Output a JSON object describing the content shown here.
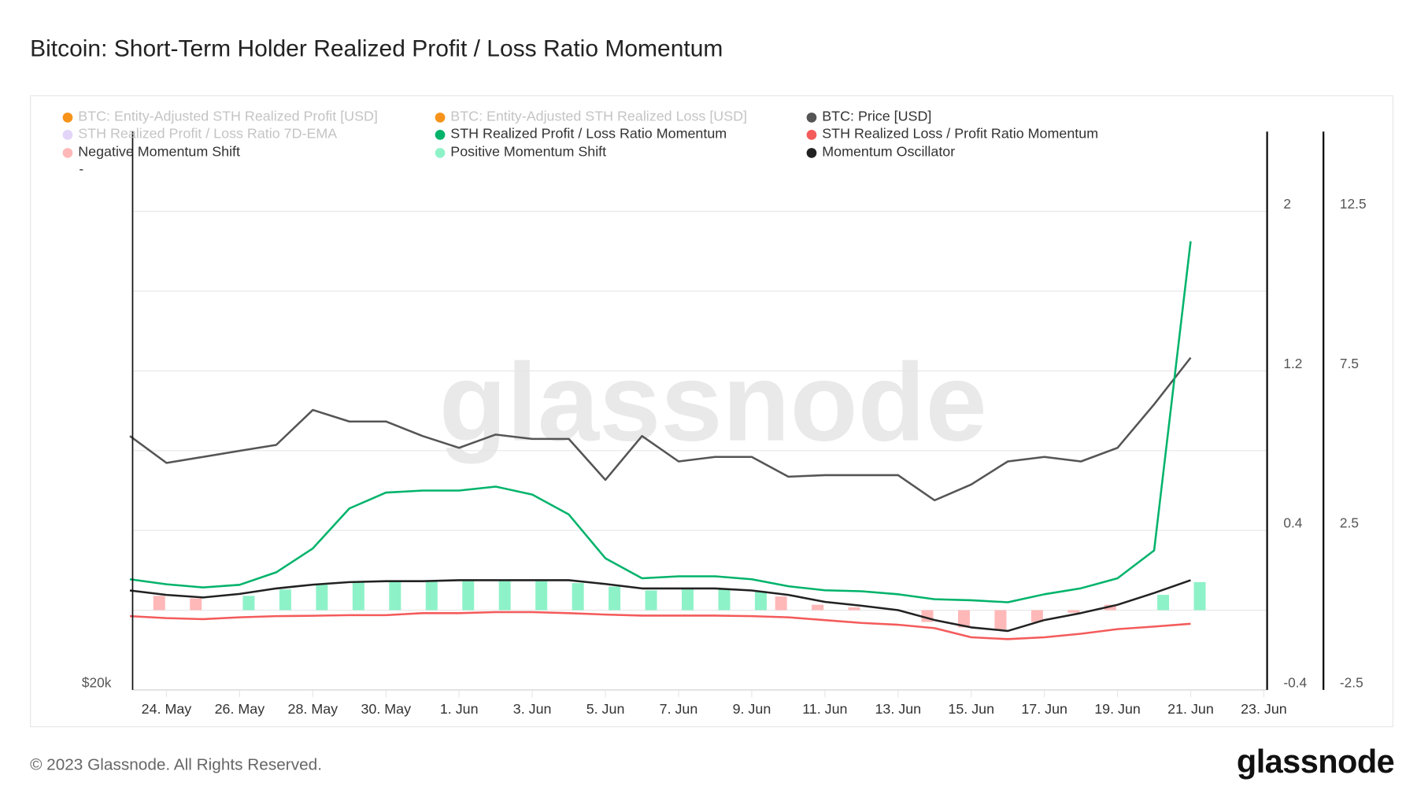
{
  "title": "Bitcoin: Short-Term Holder Realized Profit / Loss Ratio Momentum",
  "footer": {
    "copyright": "© 2023 Glassnode. All Rights Reserved.",
    "logo": "glassnode"
  },
  "watermark": "glassnode",
  "legend": {
    "items": [
      {
        "label": "BTC: Entity-Adjusted STH Realized Profit [USD]",
        "color": "#f7931a",
        "enabled": false
      },
      {
        "label": "BTC: Entity-Adjusted STH Realized Loss [USD]",
        "color": "#f7931a",
        "enabled": false
      },
      {
        "label": "BTC: Price [USD]",
        "color": "#555555",
        "enabled": true
      },
      {
        "label": "STH Realized Profit / Loss Ratio 7D-EMA",
        "color": "#e2d5f8",
        "enabled": false
      },
      {
        "label": "STH Realized Profit / Loss Ratio Momentum",
        "color": "#00b36b",
        "enabled": true
      },
      {
        "label": "STH Realized Loss / Profit Ratio Momentum",
        "color": "#f45b5b",
        "enabled": true
      },
      {
        "label": "Negative Momentum Shift",
        "color": "#ffb8b8",
        "enabled": true
      },
      {
        "label": "Positive Momentum Shift",
        "color": "#8ef2c8",
        "enabled": true
      },
      {
        "label": "Momentum Oscillator",
        "color": "#222222",
        "enabled": true
      }
    ],
    "extra": "-"
  },
  "chart_data": {
    "type": "line",
    "title": "Bitcoin: Short-Term Holder Realized Profit / Loss Ratio Momentum",
    "grid": true,
    "legend_position": "top",
    "x": [
      "2023-05-23",
      "2023-05-24",
      "2023-05-25",
      "2023-05-26",
      "2023-05-27",
      "2023-05-28",
      "2023-05-29",
      "2023-05-30",
      "2023-05-31",
      "2023-06-01",
      "2023-06-02",
      "2023-06-03",
      "2023-06-04",
      "2023-06-05",
      "2023-06-06",
      "2023-06-07",
      "2023-06-08",
      "2023-06-09",
      "2023-06-10",
      "2023-06-11",
      "2023-06-12",
      "2023-06-13",
      "2023-06-14",
      "2023-06-15",
      "2023-06-16",
      "2023-06-17",
      "2023-06-18",
      "2023-06-19",
      "2023-06-20",
      "2023-06-21"
    ],
    "x_ticks": [
      "24. May",
      "26. May",
      "28. May",
      "30. May",
      "1. Jun",
      "3. Jun",
      "5. Jun",
      "7. Jun",
      "9. Jun",
      "11. Jun",
      "13. Jun",
      "15. Jun",
      "17. Jun",
      "19. Jun",
      "21. Jun",
      "23. Jun"
    ],
    "x_range": [
      "2023-05-23",
      "2023-06-23"
    ],
    "price_axis": {
      "scale": "log",
      "range": [
        19800,
        39800
      ],
      "ticks": [
        "$20k"
      ]
    },
    "ratio_axis": {
      "range": [
        -0.4,
        2.4
      ],
      "ticks": [
        "2",
        "1.2",
        "0.4",
        "-0.4"
      ],
      "tick_values": [
        2,
        1.2,
        0.4,
        -0.4
      ]
    },
    "oscillator_axis": {
      "range": [
        -2.5,
        15
      ],
      "ticks": [
        "12.5",
        "7.5",
        "2.5",
        "-2.5"
      ],
      "tick_values": [
        12.5,
        7.5,
        2.5,
        -2.5
      ]
    },
    "series": [
      {
        "name": "BTC: Price [USD]",
        "axis": "price",
        "color": "#555555",
        "values": [
          27200,
          26300,
          26500,
          26700,
          26900,
          28100,
          27700,
          27700,
          27200,
          26800,
          27250,
          27100,
          27100,
          25750,
          27200,
          26350,
          26500,
          26500,
          25850,
          25900,
          25900,
          25900,
          25100,
          25600,
          26350,
          26500,
          26350,
          26800,
          28300,
          30000
        ]
      },
      {
        "name": "STH Realized Profit / Loss Ratio Momentum",
        "axis": "ratio",
        "color": "#00b36b",
        "values": [
          0.155,
          0.13,
          0.114,
          0.127,
          0.19,
          0.31,
          0.51,
          0.59,
          0.6,
          0.6,
          0.62,
          0.58,
          0.48,
          0.26,
          0.16,
          0.17,
          0.17,
          0.155,
          0.12,
          0.1,
          0.095,
          0.08,
          0.055,
          0.05,
          0.04,
          0.08,
          0.11,
          0.16,
          0.3,
          1.85
        ]
      },
      {
        "name": "STH Realized Loss / Profit Ratio Momentum",
        "axis": "ratio",
        "color": "#f45b5b",
        "values": [
          -0.03,
          -0.04,
          -0.045,
          -0.036,
          -0.03,
          -0.028,
          -0.025,
          -0.025,
          -0.015,
          -0.015,
          -0.01,
          -0.01,
          -0.015,
          -0.022,
          -0.027,
          -0.027,
          -0.027,
          -0.03,
          -0.036,
          -0.05,
          -0.064,
          -0.073,
          -0.09,
          -0.136,
          -0.145,
          -0.136,
          -0.118,
          -0.095,
          -0.082,
          -0.068
        ]
      },
      {
        "name": "Momentum Oscillator",
        "axis": "oscillator",
        "color": "#222222",
        "values": [
          0.62,
          0.48,
          0.4,
          0.51,
          0.68,
          0.8,
          0.88,
          0.91,
          0.91,
          0.94,
          0.94,
          0.94,
          0.94,
          0.82,
          0.68,
          0.68,
          0.68,
          0.62,
          0.48,
          0.26,
          0.14,
          0.0,
          -0.31,
          -0.54,
          -0.65,
          -0.31,
          -0.09,
          0.17,
          0.54,
          0.94
        ]
      },
      {
        "name": "Negative Momentum Shift",
        "axis": "oscillator",
        "type": "bar",
        "color": "#ffb8b8",
        "values": [
          null,
          0.45,
          0.37,
          null,
          null,
          null,
          null,
          null,
          null,
          null,
          null,
          null,
          null,
          null,
          null,
          null,
          null,
          null,
          0.43,
          0.17,
          0.09,
          null,
          -0.37,
          -0.54,
          -0.6,
          -0.37,
          -0.08,
          0.17,
          null,
          null
        ]
      },
      {
        "name": "Positive Momentum Shift",
        "axis": "oscillator",
        "type": "bar",
        "color": "#8ef2c8",
        "values": [
          null,
          null,
          null,
          0.45,
          0.65,
          0.8,
          0.9,
          0.9,
          0.92,
          0.92,
          0.92,
          0.92,
          0.85,
          0.74,
          0.62,
          0.65,
          0.65,
          0.6,
          null,
          null,
          null,
          null,
          null,
          null,
          null,
          null,
          null,
          null,
          0.48,
          0.88
        ]
      }
    ]
  }
}
